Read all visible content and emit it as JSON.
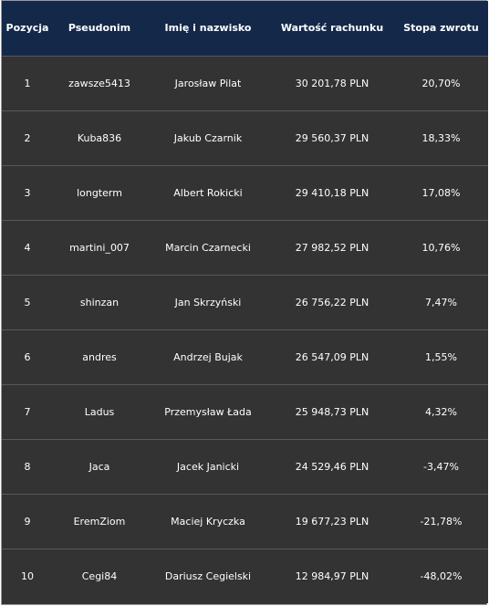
{
  "table": {
    "headers": [
      "Pozycja",
      "Pseudonim",
      "Imię i nazwisko",
      "Wartość rachunku",
      "Stopa zwrotu"
    ],
    "rows": [
      {
        "pos": "1",
        "nick": "zawsze5413",
        "name": "Jarosław Pilat",
        "value": "30 201,78 PLN",
        "rate": "20,70%"
      },
      {
        "pos": "2",
        "nick": "Kuba836",
        "name": "Jakub Czarnik",
        "value": "29 560,37 PLN",
        "rate": "18,33%"
      },
      {
        "pos": "3",
        "nick": "longterm",
        "name": "Albert Rokicki",
        "value": "29 410,18 PLN",
        "rate": "17,08%"
      },
      {
        "pos": "4",
        "nick": "martini_007",
        "name": "Marcin Czarnecki",
        "value": "27 982,52 PLN",
        "rate": "10,76%"
      },
      {
        "pos": "5",
        "nick": "shinzan",
        "name": "Jan Skrzyński",
        "value": "26 756,22 PLN",
        "rate": "7,47%"
      },
      {
        "pos": "6",
        "nick": "andres",
        "name": "Andrzej Bujak",
        "value": "26 547,09 PLN",
        "rate": "1,55%"
      },
      {
        "pos": "7",
        "nick": "Ladus",
        "name": "Przemysław Łada",
        "value": "25 948,73 PLN",
        "rate": "4,32%"
      },
      {
        "pos": "8",
        "nick": "Jaca",
        "name": "Jacek Janicki",
        "value": "24 529,46 PLN",
        "rate": "-3,47%"
      },
      {
        "pos": "9",
        "nick": "EremZiom",
        "name": "Maciej Kryczka",
        "value": "19 677,23 PLN",
        "rate": "-21,78%"
      },
      {
        "pos": "10",
        "nick": "Cegi84",
        "name": "Dariusz Cegielski",
        "value": "12 984,97 PLN",
        "rate": "-48,02%"
      }
    ]
  },
  "colors": {
    "header_bg": "#14284a",
    "row_bg": "#333333",
    "row_divider": "#595959",
    "text": "#ffffff"
  }
}
